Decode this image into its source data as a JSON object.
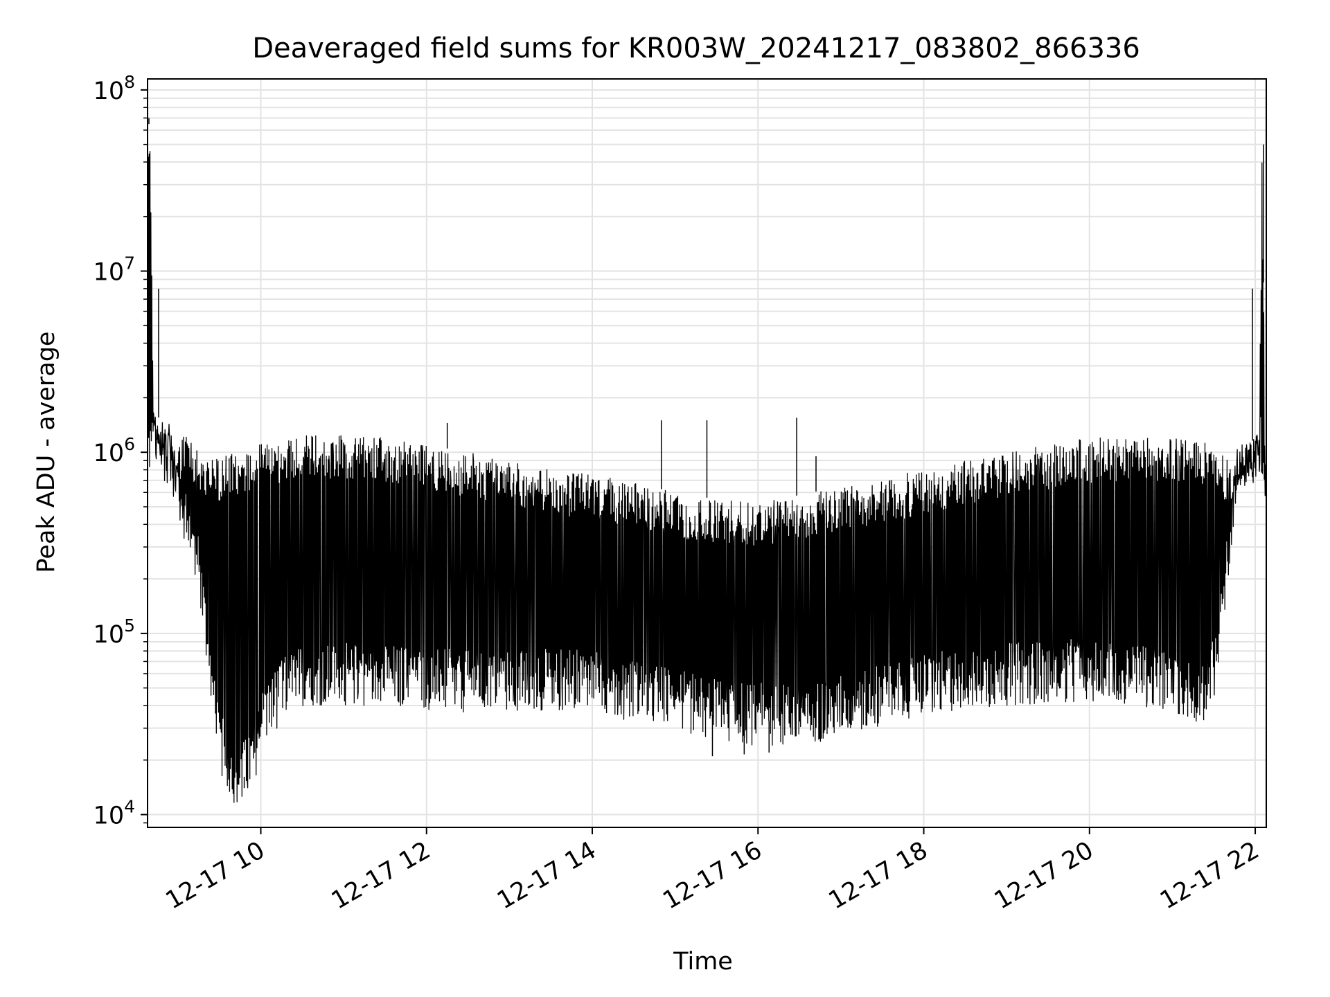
{
  "chart_data": {
    "type": "line",
    "title": "Deaveraged field sums for KR003W_20241217_083802_866336",
    "xlabel": "Time",
    "ylabel": "Peak ADU - average",
    "yscale": "log",
    "xlim": [
      "2024-12-17 08:38",
      "2024-12-17 22:08"
    ],
    "ylim": [
      8500,
      115000000
    ],
    "grid": true,
    "x_tick_labels": [
      "12-17 10",
      "12-17 12",
      "12-17 14",
      "12-17 16",
      "12-17 18",
      "12-17 20",
      "12-17 22"
    ],
    "y_tick_labels": [
      {
        "base": "10",
        "exp": "4"
      },
      {
        "base": "10",
        "exp": "5"
      },
      {
        "base": "10",
        "exp": "6"
      },
      {
        "base": "10",
        "exp": "7"
      },
      {
        "base": "10",
        "exp": "8"
      }
    ],
    "series": [
      {
        "color": "#000000",
        "upper_envelope": {
          "x": [
            "08:38",
            "08:40",
            "08:42",
            "08:45",
            "08:50",
            "08:55",
            "09:00",
            "09:05",
            "09:10",
            "09:15",
            "09:20",
            "09:30",
            "09:45",
            "10:00",
            "10:30",
            "11:00",
            "11:30",
            "12:00",
            "12:30",
            "13:00",
            "13:30",
            "14:00",
            "14:30",
            "15:00",
            "15:30",
            "16:00",
            "16:30",
            "17:00",
            "17:30",
            "18:00",
            "18:30",
            "19:00",
            "19:30",
            "20:00",
            "20:30",
            "21:00",
            "21:15",
            "21:30",
            "21:40",
            "21:50",
            "21:55",
            "22:00",
            "22:03",
            "22:05",
            "22:07",
            "22:08"
          ],
          "y": [
            60000000,
            70000000,
            2000000,
            1500000,
            1800000,
            1300000,
            1200000,
            1300000,
            1200000,
            1100000,
            900000,
            950000,
            1000000,
            1150000,
            1250000,
            1250000,
            1200000,
            1100000,
            1000000,
            900000,
            800000,
            750000,
            680000,
            600000,
            550000,
            530000,
            580000,
            650000,
            720000,
            800000,
            900000,
            1000000,
            1100000,
            1200000,
            1200000,
            1200000,
            1200000,
            1150000,
            900000,
            1100000,
            1100000,
            1200000,
            1300000,
            50000000,
            1500000,
            600000
          ]
        },
        "lower_envelope": {
          "x": [
            "08:38",
            "08:45",
            "08:55",
            "09:05",
            "09:15",
            "09:20",
            "09:25",
            "09:30",
            "09:35",
            "09:40",
            "09:45",
            "09:50",
            "09:55",
            "10:00",
            "10:15",
            "10:30",
            "11:00",
            "11:30",
            "12:00",
            "12:30",
            "13:00",
            "13:30",
            "14:00",
            "14:30",
            "15:00",
            "15:30",
            "16:00",
            "16:30",
            "17:00",
            "17:30",
            "18:00",
            "18:30",
            "19:00",
            "19:30",
            "20:00",
            "20:30",
            "21:00",
            "21:15",
            "21:25",
            "21:30",
            "21:35",
            "21:40",
            "21:45",
            "21:50",
            "21:55",
            "22:00",
            "22:05",
            "22:08"
          ],
          "y": [
            1000000,
            1000000,
            900000,
            400000,
            250000,
            100000,
            40000,
            25000,
            18000,
            16000,
            15000,
            17000,
            20000,
            30000,
            45000,
            55000,
            55000,
            55000,
            52000,
            50000,
            50000,
            52000,
            50000,
            45000,
            40000,
            35000,
            33000,
            33000,
            37000,
            43000,
            48000,
            52000,
            55000,
            57000,
            58000,
            55000,
            50000,
            45000,
            45000,
            60000,
            100000,
            250000,
            600000,
            800000,
            1000000,
            1050000,
            1050000,
            600000
          ]
        },
        "spikes": [
          {
            "x": "08:39",
            "y": 70000000
          },
          {
            "x": "08:46",
            "y": 8000000
          },
          {
            "x": "14:50",
            "y": 1500000
          },
          {
            "x": "15:23",
            "y": 1500000
          },
          {
            "x": "16:28",
            "y": 1550000
          },
          {
            "x": "16:42",
            "y": 950000
          },
          {
            "x": "12:15",
            "y": 1450000
          },
          {
            "x": "21:58",
            "y": 8000000
          },
          {
            "x": "22:06",
            "y": 50000000
          }
        ],
        "min_dips": [
          {
            "x": "09:40",
            "y": 13000
          },
          {
            "x": "09:48",
            "y": 14000
          },
          {
            "x": "15:27",
            "y": 21000
          },
          {
            "x": "15:50",
            "y": 21500
          },
          {
            "x": "16:08",
            "y": 22000
          }
        ]
      }
    ]
  }
}
